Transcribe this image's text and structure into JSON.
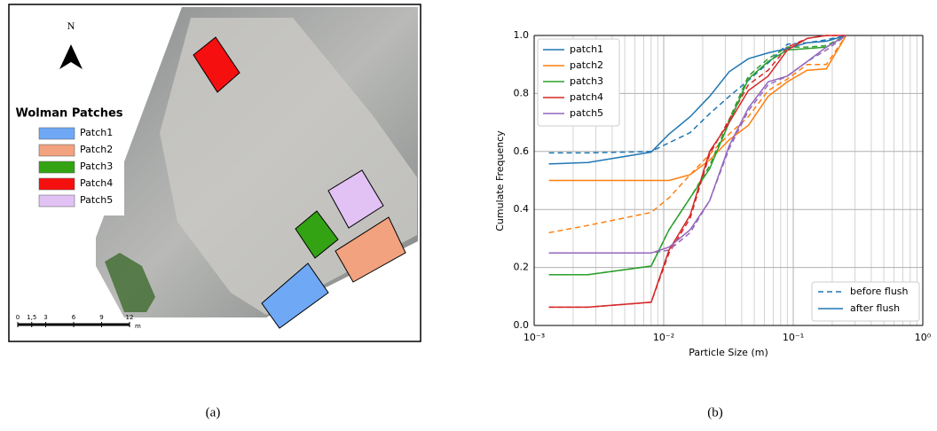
{
  "map": {
    "north": "N",
    "legend_title": "Wolman Patches",
    "patches": [
      {
        "label": "Patch1",
        "color": "#6fa8f5"
      },
      {
        "label": "Patch2",
        "color": "#f2a27e"
      },
      {
        "label": "Patch3",
        "color": "#33a314"
      },
      {
        "label": "Patch4",
        "color": "#f50f0f"
      },
      {
        "label": "Patch5",
        "color": "#e2c1f5"
      }
    ],
    "scale": {
      "ticks": [
        0,
        {
          "value": 1.5,
          "label": "1,5"
        },
        3,
        6,
        9,
        12
      ],
      "unit": "m"
    }
  },
  "chart_data": {
    "type": "line",
    "xlabel": "Particle Size (m)",
    "ylabel": "Cumulate Frequency",
    "log_x": true,
    "grid": true,
    "xlim": [
      0.001,
      1
    ],
    "xticks": [
      {
        "value": 0.001,
        "label": "10⁻³"
      },
      {
        "value": 0.01,
        "label": "10⁻²"
      },
      {
        "value": 0.1,
        "label": "10⁻¹"
      },
      {
        "value": 1,
        "label": "10⁰"
      }
    ],
    "xminor": [
      0.002,
      0.003,
      0.004,
      0.005,
      0.006,
      0.007,
      0.008,
      0.009,
      0.02,
      0.03,
      0.04,
      0.05,
      0.06,
      0.07,
      0.08,
      0.09,
      0.2,
      0.3,
      0.4,
      0.5,
      0.6,
      0.7,
      0.8,
      0.9
    ],
    "ylim": [
      0,
      1
    ],
    "yticks": [
      {
        "value": 0,
        "label": "0.0"
      },
      0.2,
      0.4,
      0.6,
      0.8,
      {
        "value": 1,
        "label": "1.0"
      }
    ],
    "x": [
      0.0013,
      0.0026,
      0.008,
      0.011,
      0.016,
      0.0226,
      0.032,
      0.045,
      0.064,
      0.09,
      0.128,
      0.18,
      0.256
    ],
    "line_styles": [
      {
        "label": "before flush",
        "dash": "dashed"
      },
      {
        "label": "after flush",
        "dash": "solid"
      }
    ],
    "series": [
      {
        "name": "patch1",
        "color": "#1f77b4",
        "before": [
          0.595,
          0.595,
          0.6,
          0.63,
          0.665,
          0.73,
          0.79,
          0.845,
          0.905,
          0.97,
          0.975,
          0.985,
          1.0
        ],
        "after": [
          0.557,
          0.562,
          0.598,
          0.66,
          0.72,
          0.79,
          0.875,
          0.92,
          0.94,
          0.955,
          0.975,
          0.98,
          1.0
        ]
      },
      {
        "name": "patch2",
        "color": "#ff7f0e",
        "before": [
          0.32,
          0.345,
          0.39,
          0.44,
          0.52,
          0.59,
          0.66,
          0.72,
          0.81,
          0.85,
          0.9,
          0.9,
          1.0
        ],
        "after": [
          0.5,
          0.5,
          0.5,
          0.5,
          0.52,
          0.57,
          0.64,
          0.69,
          0.79,
          0.84,
          0.88,
          0.885,
          1.0
        ]
      },
      {
        "name": "patch3",
        "color": "#2ca02c",
        "before": [
          0.175,
          0.175,
          0.205,
          0.33,
          0.44,
          0.55,
          0.71,
          0.86,
          0.92,
          0.96,
          0.96,
          0.965,
          1.0
        ],
        "after": [
          0.175,
          0.175,
          0.205,
          0.33,
          0.44,
          0.54,
          0.7,
          0.85,
          0.91,
          0.95,
          0.955,
          0.96,
          1.0
        ]
      },
      {
        "name": "patch4",
        "color": "#d62728",
        "before": [
          0.063,
          0.063,
          0.08,
          0.25,
          0.37,
          0.59,
          0.71,
          0.83,
          0.88,
          0.96,
          0.99,
          1.0,
          1.0
        ],
        "after": [
          0.063,
          0.063,
          0.08,
          0.26,
          0.38,
          0.6,
          0.7,
          0.81,
          0.86,
          0.95,
          0.99,
          1.0,
          1.0
        ]
      },
      {
        "name": "patch5",
        "color": "#9467bd",
        "before": [
          0.25,
          0.25,
          0.25,
          0.26,
          0.32,
          0.43,
          0.61,
          0.74,
          0.83,
          0.86,
          0.91,
          0.95,
          1.0
        ],
        "after": [
          0.25,
          0.25,
          0.25,
          0.27,
          0.33,
          0.43,
          0.62,
          0.75,
          0.84,
          0.86,
          0.91,
          0.96,
          1.0
        ]
      }
    ]
  },
  "captions": [
    "(a)",
    "(b)"
  ]
}
